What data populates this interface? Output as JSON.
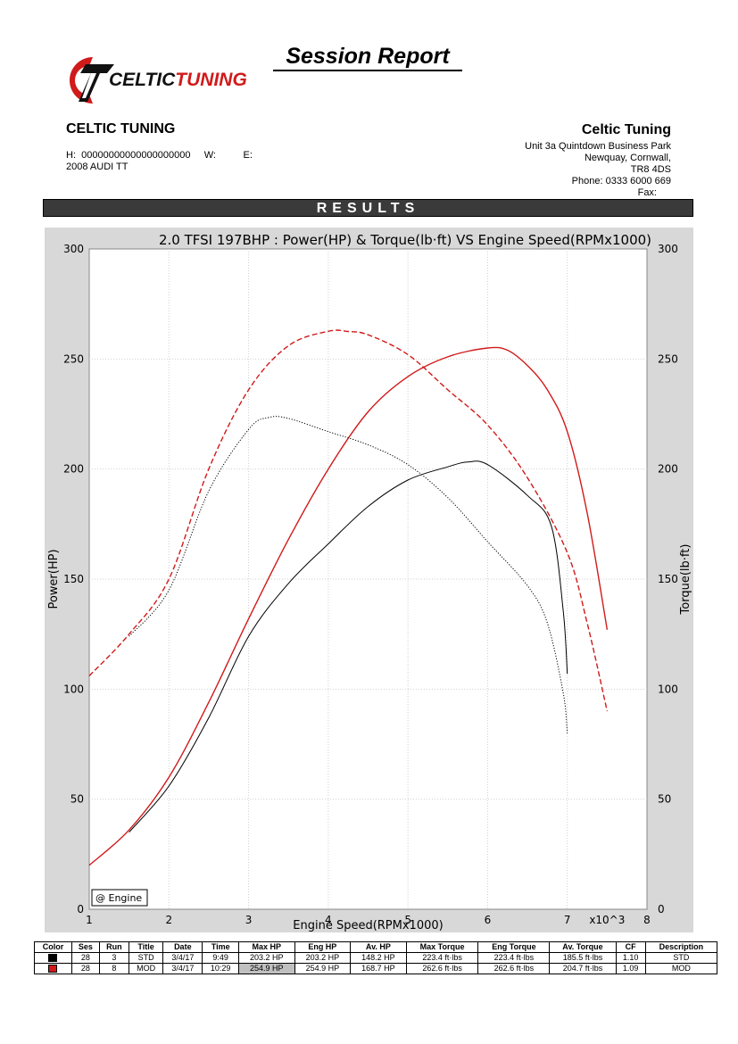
{
  "header": {
    "report_title": "Session Report",
    "logo_text": "CELTICTUNING",
    "company_left": "CELTIC TUNING",
    "left_info_line1": "H:  00000000000000000000     W:          E:",
    "left_info_line2": "2008 AUDI TT",
    "company_right": "Celtic Tuning",
    "address": [
      "Unit 3a Quintdown Business Park",
      "Newquay, Cornwall,",
      "TR8 4DS",
      "Phone: 0333 6000 669",
      "Fax:"
    ],
    "results_label": "RESULTS"
  },
  "colors": {
    "red": "#d11a1a",
    "black": "#000000",
    "plot_bg": "#ffffff",
    "frame_bg": "#d8d8d8"
  },
  "chart_data": {
    "type": "line",
    "title": "2.0 TFSI 197BHP : Power(HP) & Torque(lb·ft) VS Engine Speed(RPMx1000)",
    "xlabel": "Engine Speed(RPMx1000)",
    "x_unit_label": "x10^3",
    "ylabel_left": "Power(HP)",
    "ylabel_right": "Torque(lb·ft)",
    "xlim": [
      1,
      8
    ],
    "ylim": [
      0,
      300
    ],
    "xticks": [
      1,
      2,
      3,
      4,
      5,
      6,
      7,
      8
    ],
    "yticks": [
      0,
      50,
      100,
      150,
      200,
      250,
      300
    ],
    "grid": true,
    "legend_box": "@ Engine",
    "series": [
      {
        "name": "MOD",
        "quantity": "power",
        "color": "#d11a1a",
        "style": "solid",
        "x": [
          1.0,
          1.5,
          2.0,
          2.5,
          3.0,
          3.5,
          4.0,
          4.5,
          5.0,
          5.5,
          6.0,
          6.25,
          6.5,
          6.75,
          7.0,
          7.25,
          7.5
        ],
        "y": [
          20,
          36,
          60,
          94,
          132,
          168,
          200,
          226,
          242,
          251,
          255,
          254,
          247,
          236,
          217,
          180,
          127
        ]
      },
      {
        "name": "MOD",
        "quantity": "torque",
        "color": "#d11a1a",
        "style": "dashed",
        "x": [
          1.0,
          1.5,
          2.0,
          2.5,
          3.0,
          3.5,
          4.0,
          4.25,
          4.5,
          5.0,
          5.5,
          6.0,
          6.5,
          7.0,
          7.25,
          7.5
        ],
        "y": [
          106,
          125,
          150,
          200,
          236,
          256,
          262.6,
          262.5,
          261,
          252,
          236,
          220,
          196,
          162,
          130,
          90
        ]
      },
      {
        "name": "STD",
        "quantity": "power",
        "color": "#000000",
        "style": "solid",
        "x": [
          1.5,
          2.0,
          2.5,
          3.0,
          3.5,
          4.0,
          4.5,
          5.0,
          5.5,
          5.75,
          6.0,
          6.5,
          6.8,
          6.95,
          7.0
        ],
        "y": [
          35,
          56,
          87,
          124,
          148,
          166,
          183,
          195,
          201,
          203.2,
          202,
          188,
          174,
          135,
          107
        ]
      },
      {
        "name": "STD",
        "quantity": "torque",
        "color": "#000000",
        "style": "dotted",
        "x": [
          1.5,
          2.0,
          2.5,
          3.0,
          3.25,
          3.5,
          4.0,
          4.5,
          5.0,
          5.5,
          6.0,
          6.5,
          6.75,
          6.95,
          7.0
        ],
        "y": [
          124,
          145,
          190,
          218,
          223.4,
          223,
          217,
          211,
          202,
          187,
          167,
          147,
          130,
          98,
          80
        ]
      }
    ]
  },
  "table": {
    "headers": [
      "Color",
      "Ses",
      "Run",
      "Title",
      "Date",
      "Time",
      "Max HP",
      "Eng HP",
      "Av. HP",
      "Max Torque",
      "Eng Torque",
      "Av. Torque",
      "CF",
      "Description"
    ],
    "rows": [
      {
        "swatch": "#000000",
        "cells": [
          "28",
          "3",
          "STD",
          "3/4/17",
          "9:49",
          "203.2 HP",
          "203.2 HP",
          "148.2 HP",
          "223.4 ft·lbs",
          "223.4 ft·lbs",
          "185.5 ft·lbs",
          "1.10",
          "STD"
        ]
      },
      {
        "swatch": "#d11a1a",
        "cells": [
          "28",
          "8",
          "MOD",
          "3/4/17",
          "10:29",
          "254.9 HP",
          "254.9 HP",
          "168.7 HP",
          "262.6 ft·lbs",
          "262.6 ft·lbs",
          "204.7 ft·lbs",
          "1.09",
          "MOD"
        ]
      }
    ]
  }
}
